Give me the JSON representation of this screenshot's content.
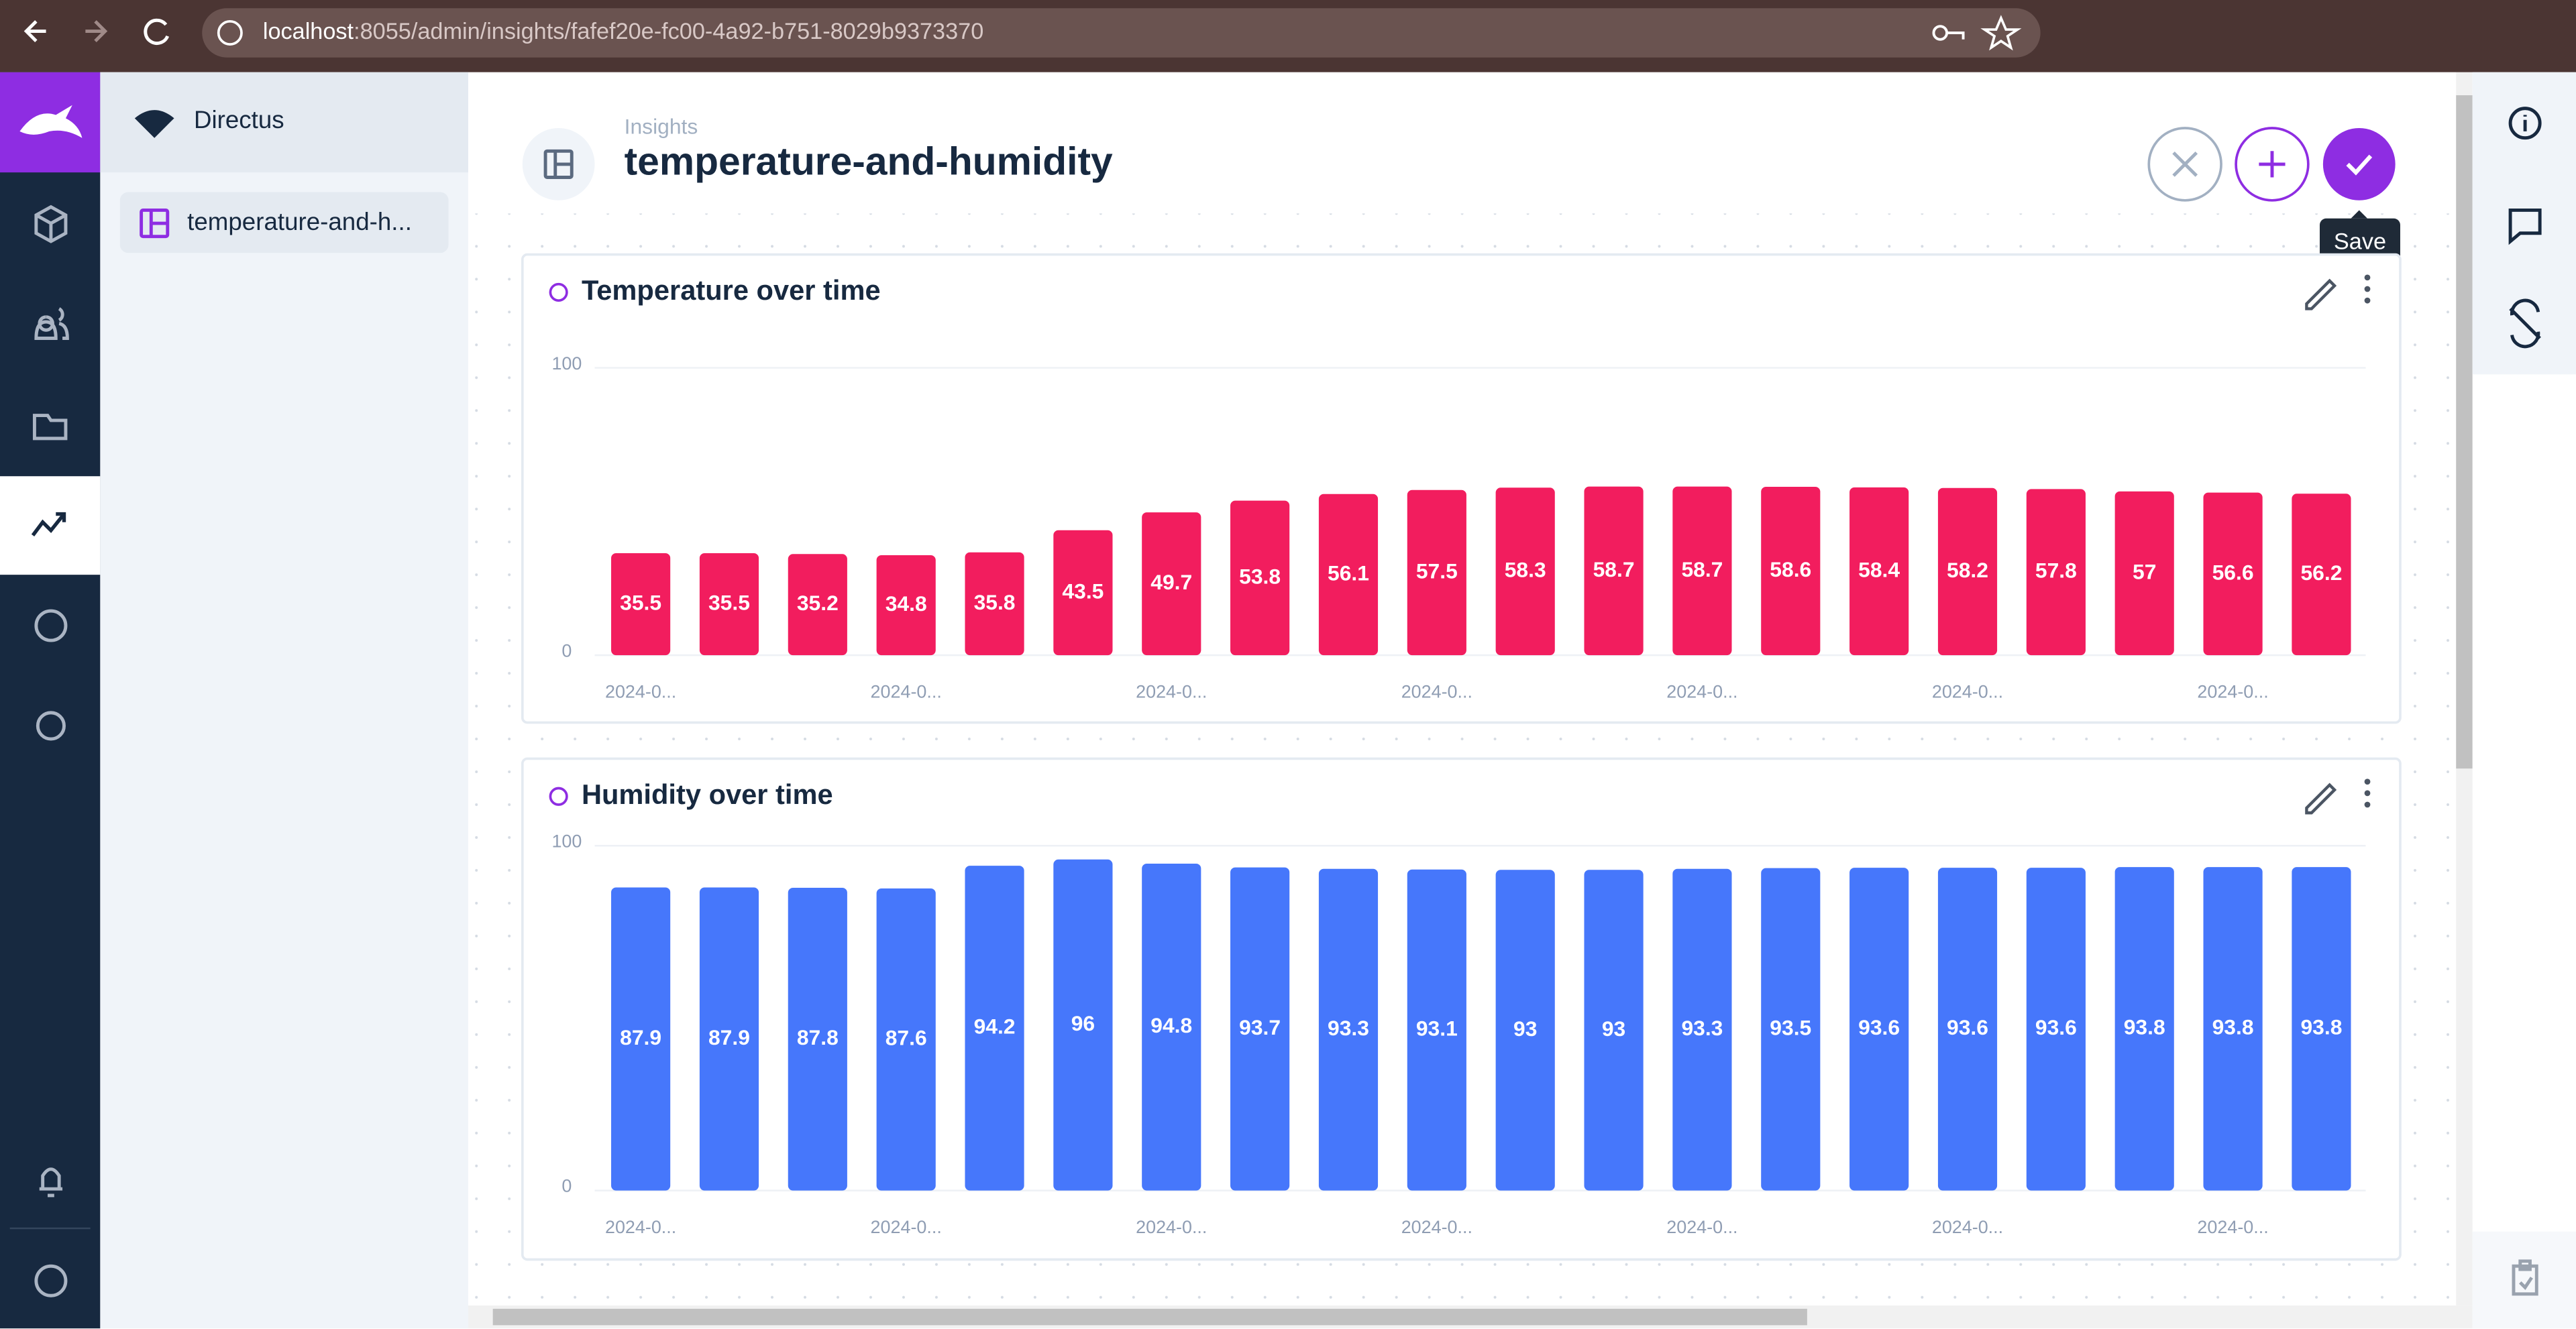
{
  "browser": {
    "url_host": "localhost",
    "url_path": ":8055/admin/insights/fafef20e-fc00-4a92-b751-8029b9373370"
  },
  "nav": {
    "app_name": "Directus",
    "items": [
      "temperature-and-h..."
    ]
  },
  "header": {
    "breadcrumb": "Insights",
    "title": "temperature-and-humidity",
    "tooltip": "Save"
  },
  "chart_data": [
    {
      "type": "bar",
      "title": "Temperature over time",
      "color": "#f21d5e",
      "categories": [
        "2024-0...",
        null,
        null,
        "2024-0...",
        null,
        null,
        "2024-0...",
        null,
        null,
        "2024-0...",
        null,
        null,
        "2024-0...",
        null,
        null,
        "2024-0...",
        null,
        null,
        "2024-0...",
        null
      ],
      "values": [
        35.5,
        35.5,
        35.2,
        34.8,
        35.8,
        43.5,
        49.7,
        53.8,
        56.1,
        57.5,
        58.3,
        58.7,
        58.7,
        58.6,
        58.4,
        58.2,
        57.8,
        57,
        56.6,
        56.2
      ],
      "ylim": [
        0,
        100
      ],
      "yticks": [
        0,
        100
      ],
      "grid": true
    },
    {
      "type": "bar",
      "title": "Humidity over time",
      "color": "#4677fb",
      "categories": [
        "2024-0...",
        null,
        null,
        "2024-0...",
        null,
        null,
        "2024-0...",
        null,
        null,
        "2024-0...",
        null,
        null,
        "2024-0...",
        null,
        null,
        "2024-0...",
        null,
        null,
        "2024-0...",
        null
      ],
      "values": [
        87.9,
        87.9,
        87.8,
        87.6,
        94.2,
        96,
        94.8,
        93.7,
        93.3,
        93.1,
        93,
        93,
        93.3,
        93.5,
        93.6,
        93.6,
        93.6,
        93.8,
        93.8,
        93.8
      ],
      "ylim": [
        0,
        100
      ],
      "yticks": [
        0,
        100
      ],
      "grid": true
    }
  ]
}
